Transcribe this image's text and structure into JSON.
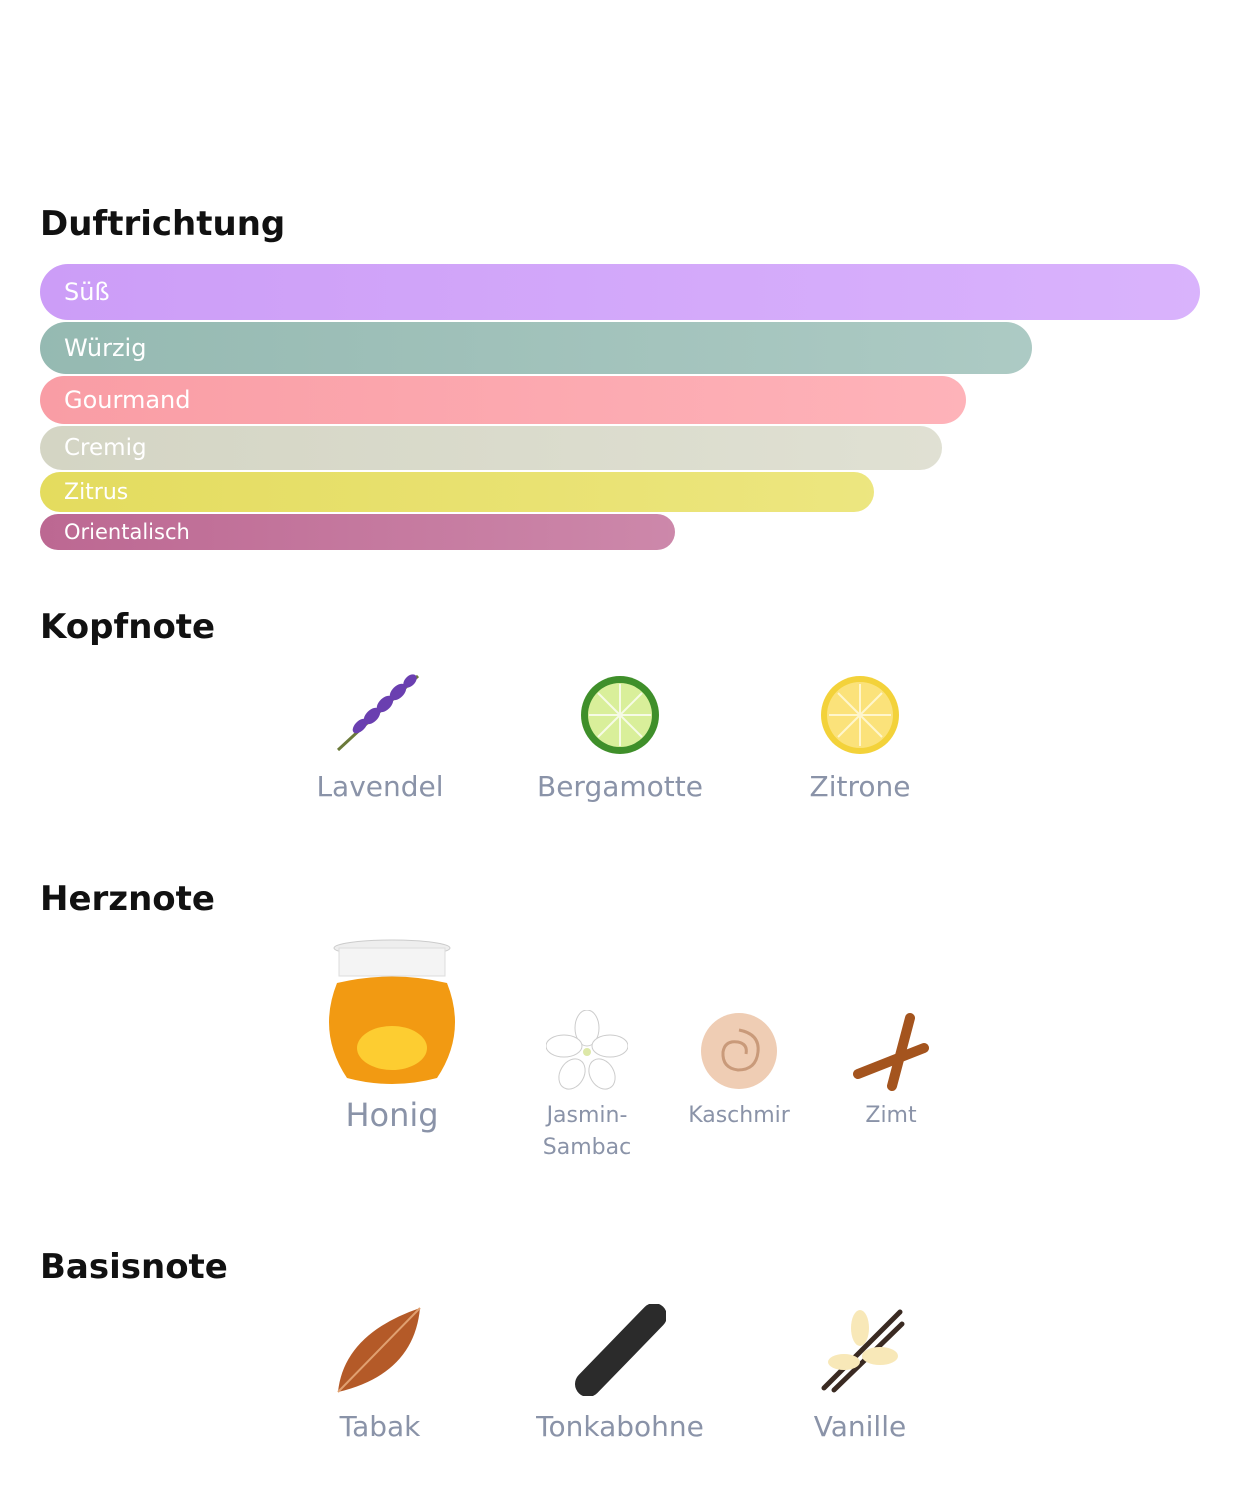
{
  "accords": {
    "title": "Duftrichtung",
    "items": [
      {
        "name": "Süß",
        "value": 100,
        "color": "#d0a0fc"
      },
      {
        "name": "Würzig",
        "value": 85.5,
        "color": "#98bdb5"
      },
      {
        "name": "Gourmand",
        "value": 79.8,
        "color": "#fea0a8"
      },
      {
        "name": "Cremig",
        "value": 77.8,
        "color": "#d8d9c8"
      },
      {
        "name": "Zitrus",
        "value": 71.9,
        "color": "#e8e060"
      },
      {
        "name": "Orientalisch",
        "value": 54.7,
        "color": "#c06a95"
      }
    ]
  },
  "top_notes": {
    "title": "Kopfnote",
    "items": [
      "Lavendel",
      "Bergamotte",
      "Zitrone"
    ]
  },
  "heart_notes": {
    "title": "Herznote",
    "items": [
      "Honig",
      "Jasmin-Sambac",
      "Kaschmir",
      "Zimt"
    ]
  },
  "base_notes": {
    "title": "Basisnote",
    "items": [
      "Tabak",
      "Tonkabohne",
      "Vanille"
    ]
  }
}
